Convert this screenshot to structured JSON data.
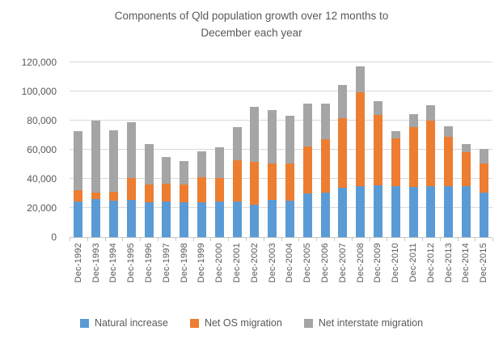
{
  "title": {
    "line1": "Components of Qld population growth over 12 months to",
    "line2": "December each year"
  },
  "chart_data": {
    "type": "bar",
    "stacked": true,
    "title": "Components of Qld population growth over 12 months to December each year",
    "categories": [
      "Dec-1992",
      "Dec-1993",
      "Dec-1994",
      "Dec-1995",
      "Dec-1996",
      "Dec-1997",
      "Dec-1998",
      "Dec-1999",
      "Dec-2000",
      "Dec-2001",
      "Dec-2002",
      "Dec-2003",
      "Dec-2004",
      "Dec-2005",
      "Dec-2006",
      "Dec-2007",
      "Dec-2008",
      "Dec-2009",
      "Dec-2010",
      "Dec-2011",
      "Dec-2012",
      "Dec-2013",
      "Dec-2014",
      "Dec-2015"
    ],
    "series": [
      {
        "name": "Natural increase",
        "color": "#5B9BD5",
        "values": [
          24500,
          26300,
          25000,
          25500,
          24000,
          24400,
          24000,
          23900,
          24700,
          24500,
          22200,
          25500,
          25000,
          30000,
          30500,
          34000,
          35000,
          35500,
          35000,
          34500,
          35000,
          35000,
          35000,
          30500
        ]
      },
      {
        "name": "Net OS migration",
        "color": "#ED7D31",
        "values": [
          7500,
          4200,
          6000,
          14800,
          12200,
          12300,
          12300,
          17200,
          16000,
          28200,
          29400,
          25100,
          25500,
          32000,
          36600,
          48000,
          64300,
          48300,
          32700,
          41200,
          45000,
          34000,
          23500,
          20000
        ]
      },
      {
        "name": "Net interstate migration",
        "color": "#A5A5A5",
        "values": [
          40500,
          49500,
          42400,
          38200,
          27600,
          18600,
          16200,
          17800,
          21000,
          22600,
          37900,
          36600,
          32700,
          29500,
          24400,
          22700,
          17500,
          9700,
          5200,
          8800,
          10600,
          7000,
          5500,
          10000
        ]
      }
    ],
    "ylim": [
      0,
      120000
    ],
    "ytick_step": 20000,
    "ytick_labels": [
      "0",
      "20,000",
      "40,000",
      "60,000",
      "80,000",
      "100,000",
      "120,000"
    ],
    "grid": true,
    "legend_position": "bottom",
    "gridline_color": "#d9d9d9",
    "axis_color": "#c6c6c6",
    "text_color": "#595959"
  }
}
